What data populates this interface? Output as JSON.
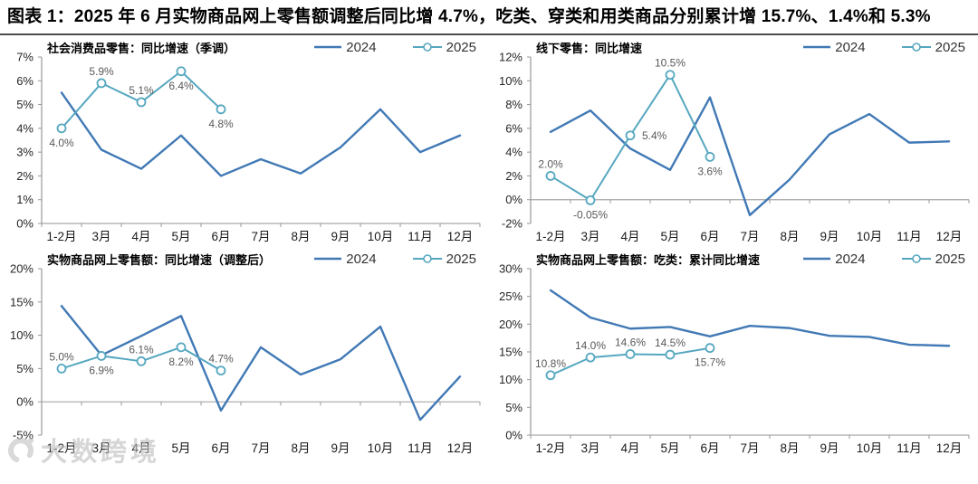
{
  "title": "图表 1：2025 年 6 月实物商品网上零售额调整后同比增 4.7%，吃类、穿类和用类商品分别累计增 15.7%、1.4%和 5.3%",
  "watermark": {
    "text": "大数跨境"
  },
  "colors": {
    "series2024": "#4179B5",
    "series2025": "#55A7C0",
    "data_label": "#595959",
    "axis_line": "#999999",
    "zero_line": "#A6A6A6",
    "axis_text": "#262626"
  },
  "categories": [
    "1-2月",
    "3月",
    "4月",
    "5月",
    "6月",
    "7月",
    "8月",
    "9月",
    "10月",
    "11月",
    "12月"
  ],
  "chart_data": [
    {
      "type": "line",
      "title": "社会消费品零售：同比增速（季调）",
      "legend": [
        "2024",
        "2025"
      ],
      "legend_position": "top-right",
      "grid": false,
      "xlabel": "",
      "ylabel": "",
      "ylim": [
        0,
        7
      ],
      "ystep": 1,
      "series": [
        {
          "name": "2024",
          "values": [
            5.5,
            3.1,
            2.3,
            3.7,
            2.0,
            2.7,
            2.1,
            3.2,
            4.8,
            3.0,
            3.7
          ]
        },
        {
          "name": "2025",
          "values": [
            4.0,
            5.9,
            5.1,
            6.4,
            4.8
          ],
          "point_labels": [
            "4.0%",
            "5.9%",
            "5.1%",
            "6.4%",
            "4.8%"
          ],
          "label_pos": [
            "below",
            "above",
            "above",
            "below",
            "below"
          ]
        }
      ]
    },
    {
      "type": "line",
      "title": "线下零售：同比增速",
      "legend": [
        "2024",
        "2025"
      ],
      "legend_position": "top-right",
      "grid": false,
      "xlabel": "",
      "ylabel": "",
      "ylim": [
        -2,
        12
      ],
      "ystep": 2,
      "series": [
        {
          "name": "2024",
          "values": [
            5.7,
            7.5,
            4.3,
            2.5,
            8.6,
            -1.3,
            1.7,
            5.5,
            7.2,
            4.8,
            4.9
          ]
        },
        {
          "name": "2025",
          "values": [
            2.0,
            -0.05,
            5.4,
            10.5,
            3.6
          ],
          "point_labels": [
            "2.0%",
            "-0.05%",
            "5.4%",
            "10.5%",
            "3.6%"
          ],
          "label_pos": [
            "above",
            "below",
            "right",
            "above",
            "below"
          ]
        }
      ]
    },
    {
      "type": "line",
      "title": "实物商品网上零售额：同比增速（调整后）",
      "legend": [
        "2024",
        "2025"
      ],
      "legend_position": "top-right",
      "grid": false,
      "xlabel": "",
      "ylabel": "",
      "ylim": [
        -5,
        20
      ],
      "ystep": 5,
      "series": [
        {
          "name": "2024",
          "values": [
            14.4,
            7.0,
            9.9,
            12.9,
            -1.3,
            8.2,
            4.1,
            6.4,
            11.3,
            -2.7,
            3.8
          ]
        },
        {
          "name": "2025",
          "values": [
            5.0,
            6.9,
            6.1,
            8.2,
            4.7
          ],
          "point_labels": [
            "5.0%",
            "6.9%",
            "6.1%",
            "8.2%",
            "4.7%"
          ],
          "label_pos": [
            "above",
            "below",
            "above",
            "below",
            "above"
          ]
        }
      ]
    },
    {
      "type": "line",
      "title": "实物商品网上零售额：吃类：累计同比增速",
      "legend": [
        "2024",
        "2025"
      ],
      "legend_position": "top-right",
      "grid": false,
      "xlabel": "",
      "ylabel": "",
      "ylim": [
        0,
        30
      ],
      "ystep": 5,
      "series": [
        {
          "name": "2024",
          "values": [
            26.1,
            21.2,
            19.2,
            19.5,
            17.8,
            19.7,
            19.3,
            17.9,
            17.7,
            16.3,
            16.1
          ]
        },
        {
          "name": "2025",
          "values": [
            10.8,
            14.0,
            14.6,
            14.5,
            15.7
          ],
          "point_labels": [
            "10.8%",
            "14.0%",
            "14.6%",
            "14.5%",
            "15.7%"
          ],
          "label_pos": [
            "above",
            "above",
            "above",
            "above",
            "below"
          ]
        }
      ]
    }
  ]
}
